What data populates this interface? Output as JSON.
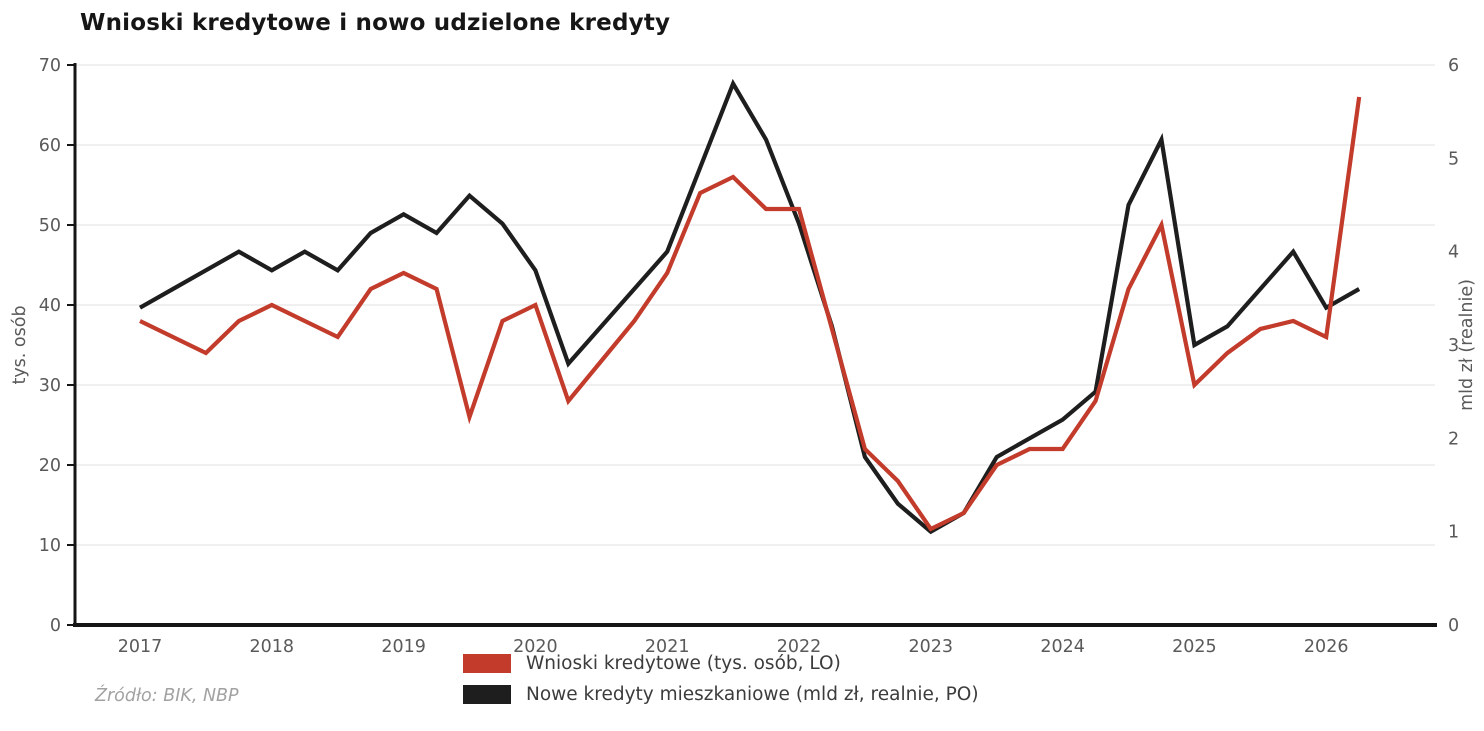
{
  "title": "Wnioski kredytowe i nowo udzielone kredyty",
  "source_note": "Źródło: BIK, NBP",
  "legend": [
    {
      "label": "Wnioski kredytowe (tys. osób, LO)",
      "color": "#c23b2b"
    },
    {
      "label": "Nowe kredyty mieszkaniowe (mld zł, realnie, PO)",
      "color": "#1e1e1e"
    }
  ],
  "chart_data": {
    "type": "line",
    "title": "Wnioski kredytowe i nowo udzielone kredyty",
    "grid": "horizontal",
    "legend_position": "bottom",
    "x_tick_labels": [
      "2017",
      "2018",
      "2019",
      "2020",
      "2021",
      "2022",
      "2023",
      "2024",
      "2025",
      "2026"
    ],
    "categories": [
      "2017Q1",
      "2017Q2",
      "2017Q3",
      "2017Q4",
      "2018Q1",
      "2018Q2",
      "2018Q3",
      "2018Q4",
      "2019Q1",
      "2019Q2",
      "2019Q3",
      "2019Q4",
      "2020Q1",
      "2020Q2",
      "2020Q3",
      "2020Q4",
      "2021Q1",
      "2021Q2",
      "2021Q3",
      "2021Q4",
      "2022Q1",
      "2022Q2",
      "2022Q3",
      "2022Q4",
      "2023Q1",
      "2023Q2",
      "2023Q3",
      "2023Q4",
      "2024Q1",
      "2024Q2",
      "2024Q3",
      "2024Q4",
      "2025Q1",
      "2025Q2",
      "2025Q3",
      "2025Q4",
      "2026Q1",
      "2026Q2"
    ],
    "left_axis": {
      "label": "tys. osób",
      "min": 0,
      "max": 70,
      "ticks": [
        0,
        10,
        20,
        30,
        40,
        50,
        60,
        70
      ]
    },
    "right_axis": {
      "label": "mld zł (realnie)",
      "min": 0,
      "max": 6,
      "ticks": [
        0,
        1,
        2,
        3,
        4,
        5,
        6
      ]
    },
    "series": [
      {
        "name": "Wnioski kredytowe (tys. osób, LO)",
        "axis": "left",
        "color": "#c23b2b",
        "values": [
          38,
          36,
          34,
          38,
          40,
          38,
          36,
          42,
          44,
          42,
          26,
          38,
          40,
          28,
          33,
          38,
          44,
          54,
          56,
          52,
          52,
          37,
          22,
          18,
          12,
          14,
          20,
          22,
          22,
          28,
          42,
          50,
          30,
          34,
          37,
          38,
          36,
          66
        ]
      },
      {
        "name": "Nowe kredyty mieszkaniowe (mld zł, realnie, PO)",
        "axis": "right",
        "color": "#1e1e1e",
        "values": [
          3.4,
          3.6,
          3.8,
          4.0,
          3.8,
          4.0,
          3.8,
          4.2,
          4.4,
          4.2,
          4.6,
          4.3,
          3.8,
          2.8,
          3.2,
          3.6,
          4.0,
          4.9,
          5.8,
          5.2,
          4.3,
          3.2,
          1.8,
          1.3,
          1.0,
          1.2,
          1.8,
          2.0,
          2.2,
          2.5,
          4.5,
          5.2,
          3.0,
          3.2,
          3.6,
          4.0,
          3.4,
          3.6
        ]
      }
    ]
  }
}
